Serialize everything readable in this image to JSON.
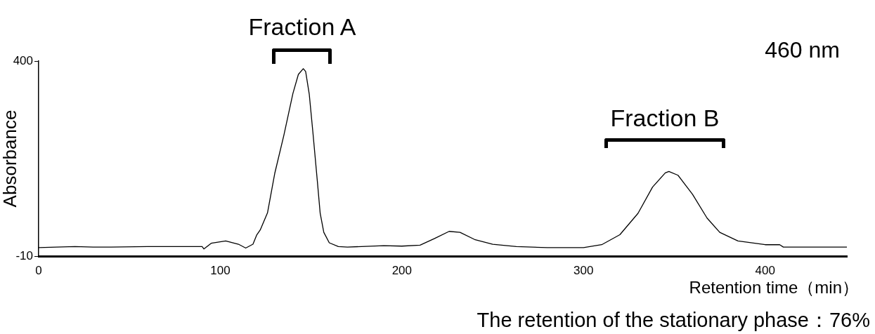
{
  "chart_data": {
    "type": "line",
    "xlabel": "Retention time（min）",
    "ylabel": "Absorbance",
    "x": [
      0,
      10,
      20,
      30,
      40,
      60,
      90,
      91,
      95,
      103,
      110,
      114,
      118,
      120,
      122,
      126,
      130,
      135,
      140,
      143,
      145.7,
      147,
      149,
      151,
      153.5,
      155,
      157,
      160,
      165,
      170,
      190,
      200,
      210,
      218,
      226,
      232,
      240,
      250,
      263,
      280,
      300,
      310,
      320,
      330,
      338,
      345,
      347,
      352,
      360,
      368,
      375,
      385,
      400,
      408,
      410,
      445
    ],
    "series": [
      {
        "color": "#000000",
        "values": [
          8,
          9,
          10,
          9,
          9,
          10,
          10,
          5,
          17,
          22,
          15,
          7,
          15,
          34,
          45,
          81,
          164,
          244,
          332,
          372,
          384,
          378,
          330,
          250,
          145,
          80,
          40,
          18,
          10,
          9,
          12,
          11,
          13,
          27,
          42,
          40,
          25,
          15,
          10,
          8,
          8,
          14,
          35,
          80,
          135,
          165,
          168,
          160,
          120,
          70,
          40,
          22,
          14,
          14,
          9,
          9
        ]
      }
    ],
    "xlim": [
      0,
      445
    ],
    "xticks": [
      0,
      100,
      200,
      300,
      400
    ],
    "ylim": [
      -10,
      400
    ],
    "yticks": [
      -10,
      400
    ],
    "grid": false,
    "legend": false,
    "marker": "none",
    "line_style": "solid",
    "annotations": [
      "Fraction A",
      "Fraction B",
      "460 nm",
      "The retention of the stationary phase：76%"
    ]
  }
}
